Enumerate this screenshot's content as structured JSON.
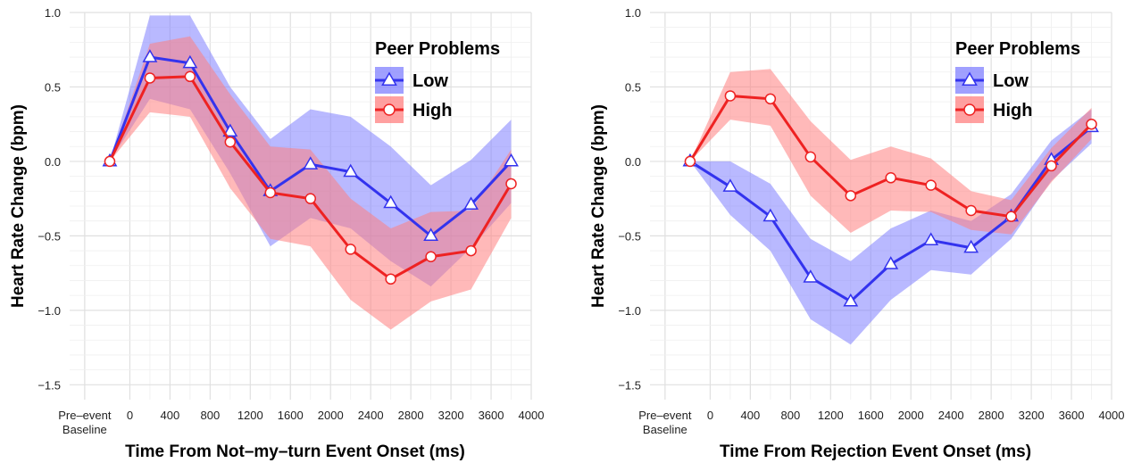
{
  "chart_data": [
    {
      "type": "line",
      "xlabel": "Time From Not–my–turn Event Onset (ms)",
      "ylabel": "Heart Rate Change (bpm)",
      "xlim": [
        -600,
        4000
      ],
      "ylim": [
        -1.6,
        1.0
      ],
      "x_ticks": [
        {
          "value": -450,
          "label": "Pre–event",
          "label2": "Baseline"
        },
        {
          "value": 0,
          "label": "0"
        },
        {
          "value": 400,
          "label": "400"
        },
        {
          "value": 800,
          "label": "800"
        },
        {
          "value": 1200,
          "label": "1200"
        },
        {
          "value": 1600,
          "label": "1600"
        },
        {
          "value": 2000,
          "label": "2000"
        },
        {
          "value": 2400,
          "label": "2400"
        },
        {
          "value": 2800,
          "label": "2800"
        },
        {
          "value": 3200,
          "label": "3200"
        },
        {
          "value": 3600,
          "label": "3600"
        },
        {
          "value": 4000,
          "label": "4000"
        }
      ],
      "y_ticks": [
        {
          "value": 1.0,
          "label": "1.0"
        },
        {
          "value": 0.5,
          "label": "0.5"
        },
        {
          "value": 0.0,
          "label": "0.0"
        },
        {
          "value": -0.5,
          "label": "−0.5"
        },
        {
          "value": -1.0,
          "label": "−1.0"
        },
        {
          "value": -1.5,
          "label": "−1.5"
        }
      ],
      "legend": {
        "title": "Peer Problems",
        "position": "top-right"
      },
      "series": [
        {
          "name": "Low",
          "color": "#3333ee",
          "band_color": "#8080ff",
          "marker": "triangle",
          "x": [
            -200,
            200,
            600,
            1000,
            1400,
            1800,
            2200,
            2600,
            3000,
            3400,
            3800
          ],
          "y": [
            0.0,
            0.7,
            0.66,
            0.2,
            -0.2,
            -0.02,
            -0.07,
            -0.28,
            -0.5,
            -0.29,
            0.0
          ],
          "lower": [
            0.0,
            0.42,
            0.35,
            -0.08,
            -0.57,
            -0.38,
            -0.45,
            -0.67,
            -0.84,
            -0.58,
            -0.28
          ],
          "upper": [
            0.0,
            0.98,
            0.98,
            0.5,
            0.15,
            0.35,
            0.3,
            0.1,
            -0.16,
            0.01,
            0.28
          ]
        },
        {
          "name": "High",
          "color": "#ee2222",
          "band_color": "#ff8080",
          "marker": "circle",
          "x": [
            -200,
            200,
            600,
            1000,
            1400,
            1800,
            2200,
            2600,
            3000,
            3400,
            3800
          ],
          "y": [
            0.0,
            0.56,
            0.57,
            0.13,
            -0.21,
            -0.25,
            -0.59,
            -0.79,
            -0.64,
            -0.6,
            -0.15
          ],
          "lower": [
            0.0,
            0.33,
            0.3,
            -0.18,
            -0.52,
            -0.57,
            -0.93,
            -1.13,
            -0.94,
            -0.86,
            -0.38
          ],
          "upper": [
            0.0,
            0.79,
            0.84,
            0.45,
            0.1,
            0.08,
            -0.25,
            -0.45,
            -0.34,
            -0.33,
            0.08
          ]
        }
      ]
    },
    {
      "type": "line",
      "xlabel": "Time From Rejection Event Onset (ms)",
      "ylabel": "Heart Rate Change (bpm)",
      "xlim": [
        -600,
        4000
      ],
      "ylim": [
        -1.6,
        1.0
      ],
      "x_ticks": [
        {
          "value": -450,
          "label": "Pre–event",
          "label2": "Baseline"
        },
        {
          "value": 0,
          "label": "0"
        },
        {
          "value": 400,
          "label": "400"
        },
        {
          "value": 800,
          "label": "800"
        },
        {
          "value": 1200,
          "label": "1200"
        },
        {
          "value": 1600,
          "label": "1600"
        },
        {
          "value": 2000,
          "label": "2000"
        },
        {
          "value": 2400,
          "label": "2400"
        },
        {
          "value": 2800,
          "label": "2800"
        },
        {
          "value": 3200,
          "label": "3200"
        },
        {
          "value": 3600,
          "label": "3600"
        },
        {
          "value": 4000,
          "label": "4000"
        }
      ],
      "y_ticks": [
        {
          "value": 1.0,
          "label": "1.0"
        },
        {
          "value": 0.5,
          "label": "0.5"
        },
        {
          "value": 0.0,
          "label": "0.0"
        },
        {
          "value": -0.5,
          "label": "−0.5"
        },
        {
          "value": -1.0,
          "label": "−1.0"
        },
        {
          "value": -1.5,
          "label": "−1.5"
        }
      ],
      "legend": {
        "title": "Peer Problems",
        "position": "top-right"
      },
      "series": [
        {
          "name": "Low",
          "color": "#3333ee",
          "band_color": "#8080ff",
          "marker": "triangle",
          "x": [
            -200,
            200,
            600,
            1000,
            1400,
            1800,
            2200,
            2600,
            3000,
            3400,
            3800
          ],
          "y": [
            0.0,
            -0.17,
            -0.37,
            -0.78,
            -0.94,
            -0.69,
            -0.53,
            -0.58,
            -0.37,
            0.01,
            0.23
          ],
          "lower": [
            0.0,
            -0.36,
            -0.6,
            -1.06,
            -1.23,
            -0.93,
            -0.73,
            -0.76,
            -0.52,
            -0.13,
            0.12
          ],
          "upper": [
            0.0,
            0.0,
            -0.15,
            -0.52,
            -0.67,
            -0.45,
            -0.33,
            -0.4,
            -0.22,
            0.14,
            0.35
          ]
        },
        {
          "name": "High",
          "color": "#ee2222",
          "band_color": "#ff8080",
          "marker": "circle",
          "x": [
            -200,
            200,
            600,
            1000,
            1400,
            1800,
            2200,
            2600,
            3000,
            3400,
            3800
          ],
          "y": [
            0.0,
            0.44,
            0.42,
            0.03,
            -0.23,
            -0.11,
            -0.16,
            -0.33,
            -0.37,
            -0.03,
            0.25
          ],
          "lower": [
            0.0,
            0.28,
            0.24,
            -0.23,
            -0.48,
            -0.33,
            -0.34,
            -0.46,
            -0.49,
            -0.14,
            0.15
          ],
          "upper": [
            0.0,
            0.6,
            0.62,
            0.27,
            0.01,
            0.1,
            0.02,
            -0.2,
            -0.26,
            0.09,
            0.36
          ]
        }
      ]
    }
  ]
}
